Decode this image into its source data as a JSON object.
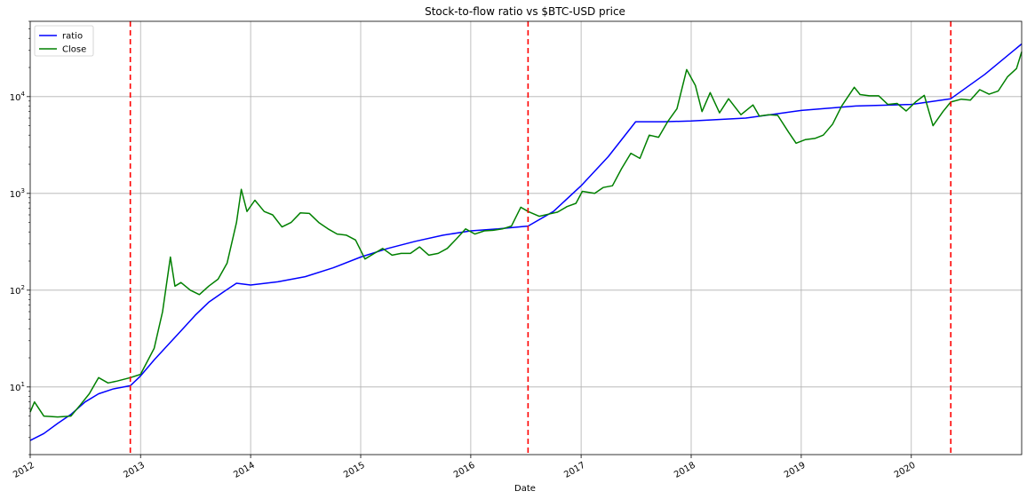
{
  "chart_data": {
    "type": "line",
    "title": "Stock-to-flow ratio vs $BTC-USD price",
    "xlabel": "Date",
    "ylabel": "",
    "yscale": "log",
    "xlim": [
      "2012-01-01",
      "2021-01-01"
    ],
    "ylim": [
      2,
      60000
    ],
    "grid": true,
    "legend_placement": "top-left",
    "x_ticks": [
      "2012",
      "2013",
      "2014",
      "2015",
      "2016",
      "2017",
      "2018",
      "2019",
      "2020"
    ],
    "y_ticks": [
      {
        "value": 10,
        "base": "10",
        "exp": "1"
      },
      {
        "value": 100,
        "base": "10",
        "exp": "2"
      },
      {
        "value": 1000,
        "base": "10",
        "exp": "3"
      },
      {
        "value": 10000,
        "base": "10",
        "exp": "4"
      }
    ],
    "vlines": {
      "color": "#ff0000",
      "style": "dashed",
      "dates": [
        "2012-11-28",
        "2016-07-09",
        "2020-05-11"
      ]
    },
    "series": [
      {
        "name": "ratio",
        "color": "#0000ff",
        "points": [
          [
            "2012-01-01",
            2.8
          ],
          [
            "2012-02-15",
            3.3
          ],
          [
            "2012-04-01",
            4.2
          ],
          [
            "2012-05-15",
            5.2
          ],
          [
            "2012-07-01",
            7.0
          ],
          [
            "2012-08-15",
            8.5
          ],
          [
            "2012-10-01",
            9.5
          ],
          [
            "2012-11-28",
            10.3
          ],
          [
            "2013-01-01",
            13
          ],
          [
            "2013-02-15",
            19
          ],
          [
            "2013-04-01",
            27
          ],
          [
            "2013-05-15",
            38
          ],
          [
            "2013-07-01",
            55
          ],
          [
            "2013-08-15",
            75
          ],
          [
            "2013-10-01",
            95
          ],
          [
            "2013-11-15",
            118
          ],
          [
            "2014-01-01",
            113
          ],
          [
            "2014-04-01",
            122
          ],
          [
            "2014-07-01",
            138
          ],
          [
            "2014-10-01",
            170
          ],
          [
            "2015-01-01",
            220
          ],
          [
            "2015-04-01",
            270
          ],
          [
            "2015-07-01",
            320
          ],
          [
            "2015-10-01",
            370
          ],
          [
            "2016-01-01",
            410
          ],
          [
            "2016-04-01",
            430
          ],
          [
            "2016-07-09",
            460
          ],
          [
            "2016-10-01",
            650
          ],
          [
            "2017-01-01",
            1200
          ],
          [
            "2017-04-01",
            2400
          ],
          [
            "2017-07-01",
            5500
          ],
          [
            "2017-10-01",
            5500
          ],
          [
            "2018-01-01",
            5600
          ],
          [
            "2018-07-01",
            6000
          ],
          [
            "2019-01-01",
            7200
          ],
          [
            "2019-07-01",
            8000
          ],
          [
            "2020-01-01",
            8300
          ],
          [
            "2020-05-11",
            9500
          ],
          [
            "2020-09-01",
            17000
          ],
          [
            "2021-01-01",
            35000
          ]
        ]
      },
      {
        "name": "Close",
        "color": "#008000",
        "points": [
          [
            "2012-01-01",
            5.5
          ],
          [
            "2012-01-15",
            7.0
          ],
          [
            "2012-02-15",
            5.0
          ],
          [
            "2012-04-01",
            4.9
          ],
          [
            "2012-05-15",
            5.0
          ],
          [
            "2012-06-15",
            6.5
          ],
          [
            "2012-07-15",
            8.5
          ],
          [
            "2012-08-15",
            12.5
          ],
          [
            "2012-09-15",
            11.0
          ],
          [
            "2012-10-15",
            11.5
          ],
          [
            "2012-11-28",
            12.5
          ],
          [
            "2013-01-01",
            13.5
          ],
          [
            "2013-02-15",
            25
          ],
          [
            "2013-03-15",
            60
          ],
          [
            "2013-04-10",
            220
          ],
          [
            "2013-04-25",
            110
          ],
          [
            "2013-05-15",
            120
          ],
          [
            "2013-06-15",
            100
          ],
          [
            "2013-07-15",
            90
          ],
          [
            "2013-08-15",
            110
          ],
          [
            "2013-09-15",
            130
          ],
          [
            "2013-10-15",
            190
          ],
          [
            "2013-11-15",
            500
          ],
          [
            "2013-12-01",
            1100
          ],
          [
            "2013-12-20",
            650
          ],
          [
            "2014-01-15",
            850
          ],
          [
            "2014-02-15",
            650
          ],
          [
            "2014-03-15",
            600
          ],
          [
            "2014-04-15",
            450
          ],
          [
            "2014-05-15",
            500
          ],
          [
            "2014-06-15",
            630
          ],
          [
            "2014-07-15",
            620
          ],
          [
            "2014-08-15",
            500
          ],
          [
            "2014-09-15",
            430
          ],
          [
            "2014-10-15",
            380
          ],
          [
            "2014-11-15",
            370
          ],
          [
            "2014-12-15",
            330
          ],
          [
            "2015-01-15",
            210
          ],
          [
            "2015-02-15",
            240
          ],
          [
            "2015-03-15",
            270
          ],
          [
            "2015-04-15",
            230
          ],
          [
            "2015-05-15",
            240
          ],
          [
            "2015-06-15",
            240
          ],
          [
            "2015-07-15",
            280
          ],
          [
            "2015-08-15",
            230
          ],
          [
            "2015-09-15",
            240
          ],
          [
            "2015-10-15",
            270
          ],
          [
            "2015-11-15",
            340
          ],
          [
            "2015-12-15",
            430
          ],
          [
            "2016-01-15",
            380
          ],
          [
            "2016-02-15",
            410
          ],
          [
            "2016-03-15",
            415
          ],
          [
            "2016-04-15",
            430
          ],
          [
            "2016-05-15",
            460
          ],
          [
            "2016-06-15",
            720
          ],
          [
            "2016-07-09",
            650
          ],
          [
            "2016-08-15",
            580
          ],
          [
            "2016-09-15",
            610
          ],
          [
            "2016-10-15",
            640
          ],
          [
            "2016-11-15",
            730
          ],
          [
            "2016-12-15",
            790
          ],
          [
            "2017-01-05",
            1050
          ],
          [
            "2017-02-15",
            1000
          ],
          [
            "2017-03-15",
            1150
          ],
          [
            "2017-04-15",
            1200
          ],
          [
            "2017-05-15",
            1800
          ],
          [
            "2017-06-15",
            2600
          ],
          [
            "2017-07-15",
            2300
          ],
          [
            "2017-08-15",
            4000
          ],
          [
            "2017-09-15",
            3800
          ],
          [
            "2017-10-15",
            5500
          ],
          [
            "2017-11-15",
            7500
          ],
          [
            "2017-12-17",
            19000
          ],
          [
            "2018-01-15",
            13000
          ],
          [
            "2018-02-06",
            7000
          ],
          [
            "2018-03-05",
            11000
          ],
          [
            "2018-04-05",
            6800
          ],
          [
            "2018-05-05",
            9500
          ],
          [
            "2018-06-15",
            6500
          ],
          [
            "2018-07-25",
            8200
          ],
          [
            "2018-08-15",
            6300
          ],
          [
            "2018-09-15",
            6500
          ],
          [
            "2018-10-15",
            6400
          ],
          [
            "2018-11-20",
            4300
          ],
          [
            "2018-12-15",
            3300
          ],
          [
            "2019-01-15",
            3600
          ],
          [
            "2019-02-15",
            3700
          ],
          [
            "2019-03-15",
            4000
          ],
          [
            "2019-04-15",
            5200
          ],
          [
            "2019-05-15",
            8000
          ],
          [
            "2019-06-26",
            12500
          ],
          [
            "2019-07-15",
            10500
          ],
          [
            "2019-08-15",
            10200
          ],
          [
            "2019-09-15",
            10200
          ],
          [
            "2019-10-15",
            8300
          ],
          [
            "2019-11-15",
            8500
          ],
          [
            "2019-12-15",
            7100
          ],
          [
            "2020-01-15",
            8800
          ],
          [
            "2020-02-13",
            10300
          ],
          [
            "2020-03-13",
            5000
          ],
          [
            "2020-04-15",
            7000
          ],
          [
            "2020-05-11",
            8800
          ],
          [
            "2020-06-15",
            9400
          ],
          [
            "2020-07-15",
            9200
          ],
          [
            "2020-08-15",
            11800
          ],
          [
            "2020-09-15",
            10600
          ],
          [
            "2020-10-15",
            11400
          ],
          [
            "2020-11-15",
            16000
          ],
          [
            "2020-12-15",
            19500
          ],
          [
            "2021-01-01",
            29000
          ]
        ]
      }
    ]
  }
}
